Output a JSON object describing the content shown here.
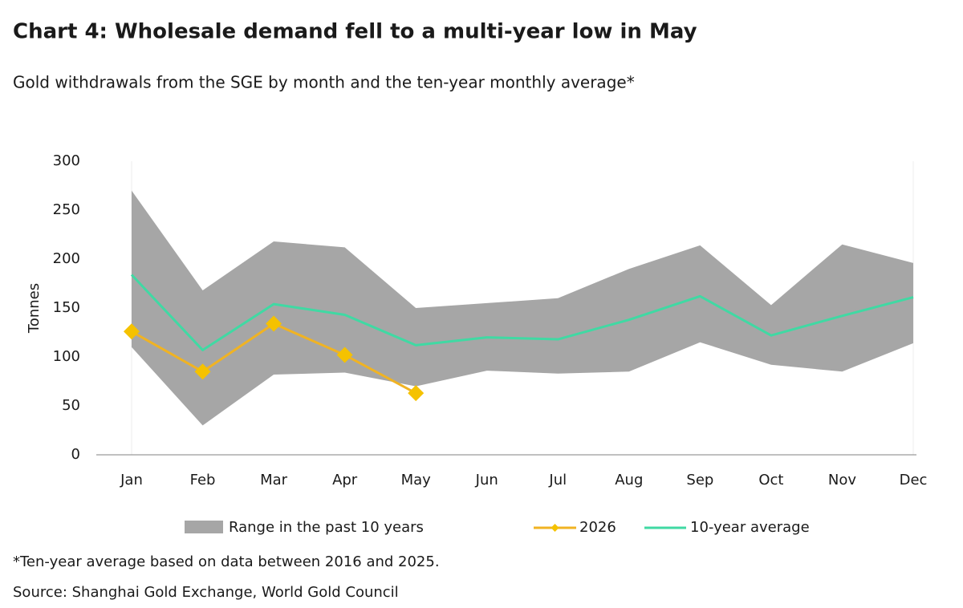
{
  "chart_data": {
    "type": "line",
    "title": "Chart 4: Wholesale demand fell to a multi-year low in May",
    "subtitle": "Gold withdrawals from the SGE by month and the ten-year monthly average*",
    "y_label": "Tonnes",
    "categories": [
      "Jan",
      "Feb",
      "Mar",
      "Apr",
      "May",
      "Jun",
      "Jul",
      "Aug",
      "Sep",
      "Oct",
      "Nov",
      "Dec"
    ],
    "range": {
      "name": "Range in the past 10 years",
      "color": "#a6a6a6",
      "low": [
        110,
        30,
        82,
        84,
        70,
        86,
        83,
        85,
        115,
        92,
        85,
        114
      ],
      "high": [
        270,
        168,
        218,
        212,
        150,
        155,
        160,
        190,
        214,
        153,
        215,
        196
      ]
    },
    "series": [
      {
        "name": "2026",
        "color": "#f0b323",
        "markers": true,
        "values": [
          126,
          85,
          134,
          102,
          63,
          null,
          null,
          null,
          null,
          null,
          null,
          null
        ]
      },
      {
        "name": "10-year average",
        "color": "#40d9a3",
        "markers": false,
        "values": [
          184,
          107,
          154,
          143,
          112,
          120,
          118,
          138,
          162,
          122,
          142,
          161
        ]
      }
    ],
    "ylim": [
      0,
      300
    ],
    "yticks": [
      0,
      50,
      100,
      150,
      200,
      250,
      300
    ],
    "grid": false,
    "legend": "bottom",
    "notes": [
      "*Ten-year average based on data between 2016 and 2025.",
      "Source: Shanghai Gold Exchange, World Gold Council"
    ]
  }
}
